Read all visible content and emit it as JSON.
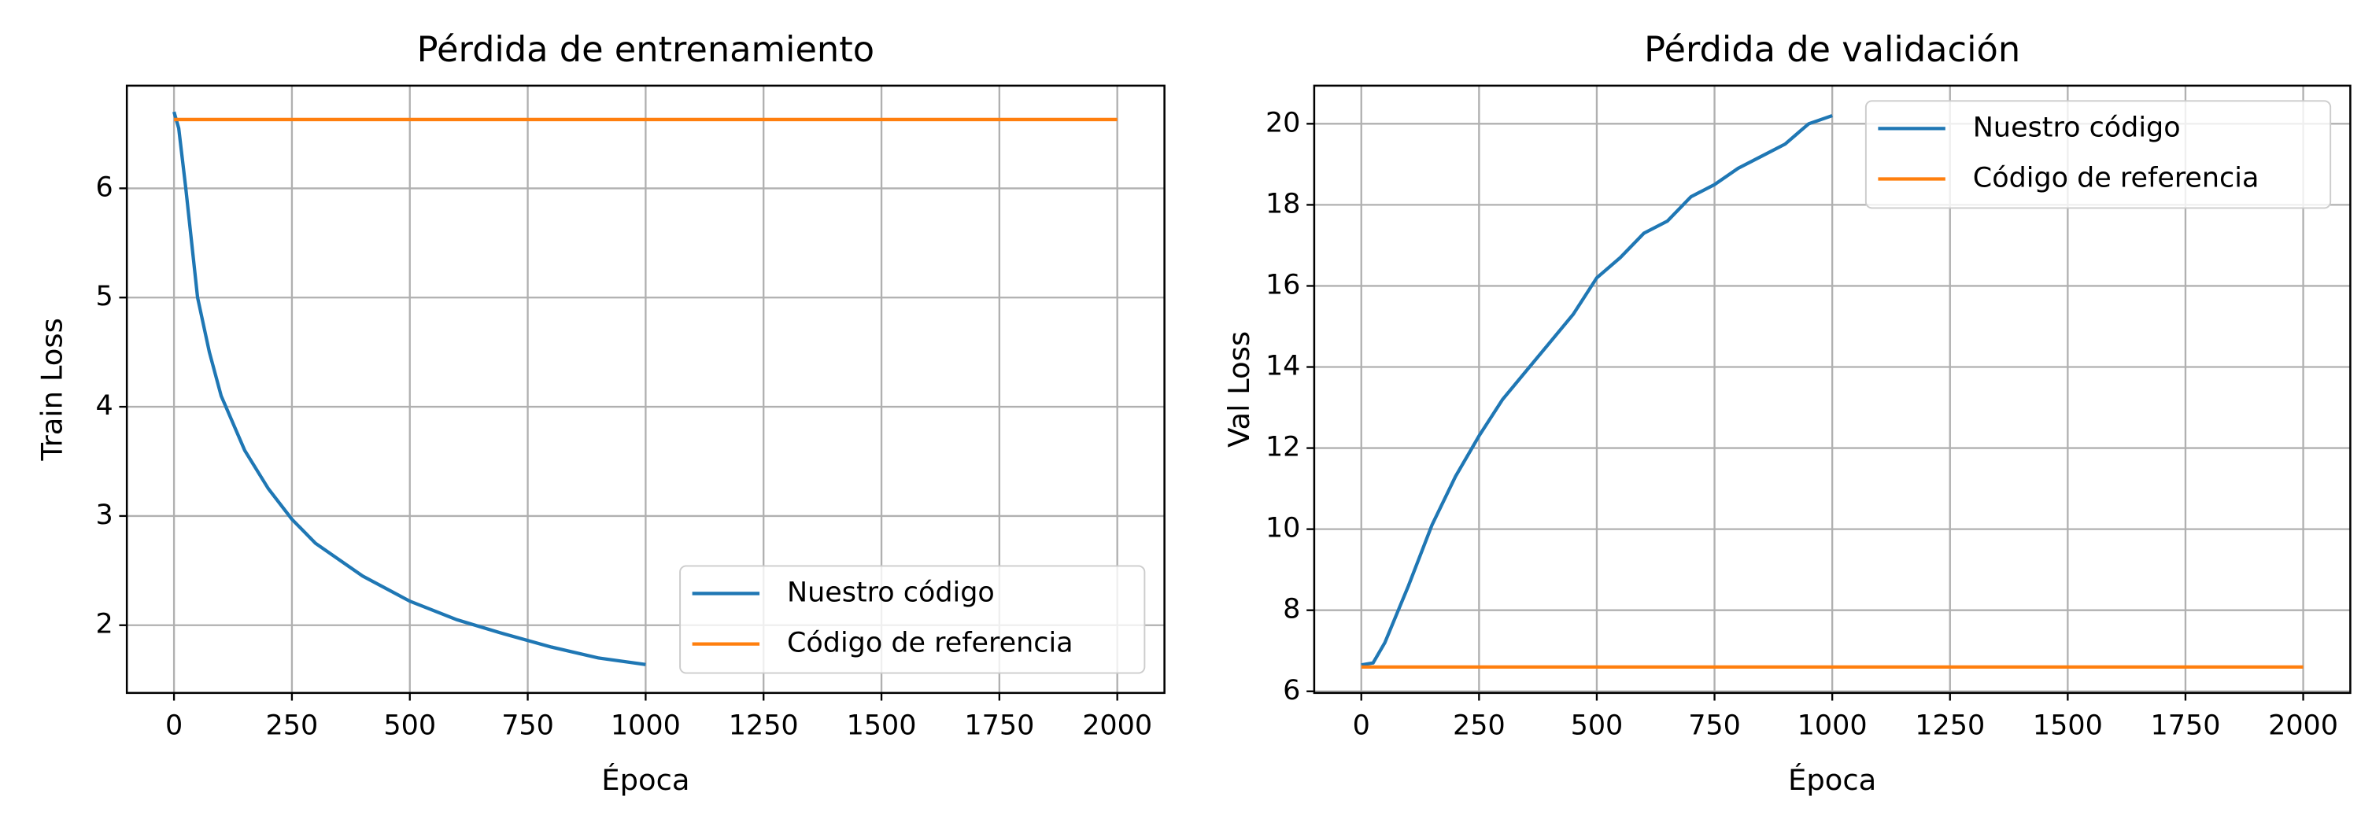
{
  "chart_data": [
    {
      "type": "line",
      "title": "Pérdida de entrenamiento",
      "xlabel": "Época",
      "ylabel": "Train Loss",
      "xlim": [
        -100,
        2100
      ],
      "xticks": [
        0,
        250,
        500,
        750,
        1000,
        1250,
        1500,
        1750,
        2000
      ],
      "ylim": [
        1.38,
        6.94
      ],
      "yticks": [
        2,
        3,
        4,
        5,
        6
      ],
      "grid": true,
      "legend": "lower right",
      "series": [
        {
          "name": "Nuestro código",
          "color": "#1f77b4",
          "x": [
            0,
            10,
            25,
            50,
            75,
            100,
            150,
            200,
            250,
            300,
            400,
            500,
            600,
            700,
            800,
            900,
            1000
          ],
          "values": [
            6.7,
            6.55,
            6.0,
            5.0,
            4.5,
            4.1,
            3.6,
            3.25,
            2.97,
            2.75,
            2.45,
            2.22,
            2.05,
            1.92,
            1.8,
            1.7,
            1.64
          ]
        },
        {
          "name": "Código de referencia",
          "color": "#ff7f0e",
          "x": [
            0,
            2000
          ],
          "values": [
            6.63,
            6.63
          ]
        }
      ]
    },
    {
      "type": "line",
      "title": "Pérdida de validación",
      "xlabel": "Época",
      "ylabel": "Val Loss",
      "xlim": [
        -100,
        2100
      ],
      "xticks": [
        0,
        250,
        500,
        750,
        1000,
        1250,
        1500,
        1750,
        2000
      ],
      "ylim": [
        5.96,
        20.94
      ],
      "yticks": [
        6,
        8,
        10,
        12,
        14,
        16,
        18,
        20
      ],
      "grid": true,
      "legend": "upper right",
      "series": [
        {
          "name": "Nuestro código",
          "color": "#1f77b4",
          "x": [
            0,
            25,
            50,
            100,
            150,
            200,
            250,
            300,
            350,
            400,
            450,
            500,
            550,
            600,
            650,
            700,
            750,
            800,
            850,
            900,
            950,
            1000
          ],
          "values": [
            6.65,
            6.7,
            7.2,
            8.6,
            10.1,
            11.3,
            12.3,
            13.2,
            13.9,
            14.6,
            15.3,
            16.2,
            16.7,
            17.3,
            17.6,
            18.2,
            18.5,
            18.9,
            19.2,
            19.5,
            20.0,
            20.2
          ]
        },
        {
          "name": "Código de referencia",
          "color": "#ff7f0e",
          "x": [
            0,
            2000
          ],
          "values": [
            6.6,
            6.6
          ]
        }
      ]
    }
  ]
}
